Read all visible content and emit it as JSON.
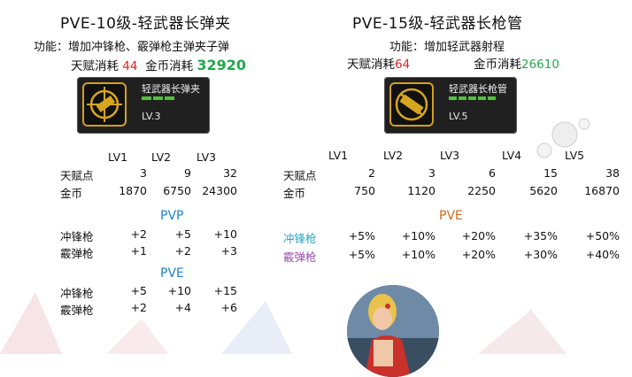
{
  "left": {
    "title": "PVE-10级-轻武器长弹夹",
    "function": "功能：增加冲锋枪、霰弹枪主弹夹子弹",
    "talent_label": "天赋消耗",
    "talent_value": "44",
    "gold_label": "金币消耗",
    "gold_value": "32920",
    "card": {
      "name": "轻武器长弹夹",
      "level": "LV.3",
      "bars": 3
    },
    "levels": [
      "LV1",
      "LV2",
      "LV3"
    ],
    "rows": [
      {
        "label": "天赋点",
        "values": [
          "3",
          "9",
          "32"
        ]
      },
      {
        "label": "金币",
        "values": [
          "1870",
          "6750",
          "24300"
        ]
      }
    ],
    "pvp_title": "PVP",
    "pvp_rows": [
      {
        "label": "冲锋枪",
        "values": [
          "+2",
          "+5",
          "+10"
        ]
      },
      {
        "label": "霰弹枪",
        "values": [
          "+1",
          "+2",
          "+3"
        ]
      }
    ],
    "pve_title": "PVE",
    "pve_rows": [
      {
        "label": "冲锋枪",
        "values": [
          "+5",
          "+10",
          "+15"
        ]
      },
      {
        "label": "霰弹枪",
        "values": [
          "+2",
          "+4",
          "+6"
        ]
      }
    ]
  },
  "right": {
    "title": "PVE-15级-轻武器长枪管",
    "function": "功能：增加轻武器射程",
    "talent_label": "天赋消耗",
    "talent_value": "64",
    "gold_label": "金币消耗",
    "gold_value": "26610",
    "card": {
      "name": "轻武器长枪管",
      "level": "LV.5",
      "bars": 5
    },
    "levels": [
      "LV1",
      "LV2",
      "LV3",
      "LV4",
      "LV5"
    ],
    "rows": [
      {
        "label": "天赋点",
        "values": [
          "2",
          "3",
          "6",
          "15",
          "38"
        ]
      },
      {
        "label": "金币",
        "values": [
          "750",
          "1120",
          "2250",
          "5620",
          "16870"
        ]
      }
    ],
    "pve_title": "PVE",
    "pve_rows": [
      {
        "label": "冲锋枪",
        "values": [
          "+5%",
          "+10%",
          "+20%",
          "+35%",
          "+50%"
        ]
      },
      {
        "label": "霰弹枪",
        "values": [
          "+5%",
          "+10%",
          "+20%",
          "+30%",
          "+40%"
        ]
      }
    ]
  },
  "colors": {
    "talent": "#e02020",
    "gold": "#23a84c",
    "pvp": "#1f80c8",
    "pve_right": "#d06a1e",
    "smg_label": "#23a8c8",
    "shotgun_label": "#9a4ab0"
  }
}
